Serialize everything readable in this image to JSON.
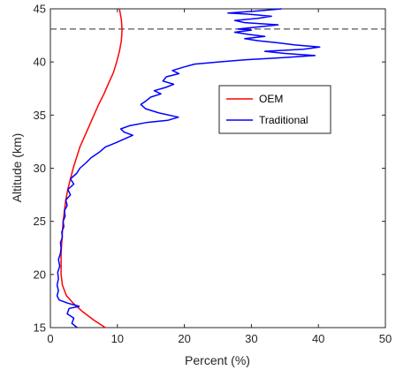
{
  "chart_data": {
    "type": "line",
    "xlabel": "Percent (%)",
    "ylabel": "Altitude (km)",
    "xlim": [
      0,
      50
    ],
    "ylim": [
      15,
      45
    ],
    "xticks": [
      0,
      10,
      20,
      30,
      40,
      50
    ],
    "yticks": [
      15,
      20,
      25,
      30,
      35,
      40,
      45
    ],
    "grid": false,
    "legend_position": "right-middle",
    "reference_line": {
      "y": 43.1,
      "style": "dashed",
      "color": "#555555"
    },
    "series": [
      {
        "name": "OEM",
        "color": "#ff0000",
        "points": [
          [
            8.2,
            15.0
          ],
          [
            6.5,
            15.7
          ],
          [
            4.8,
            16.5
          ],
          [
            3.4,
            17.3
          ],
          [
            2.4,
            18.0
          ],
          [
            1.8,
            19.0
          ],
          [
            1.6,
            20.0
          ],
          [
            1.6,
            21.0
          ],
          [
            1.6,
            22.0
          ],
          [
            1.7,
            23.0
          ],
          [
            1.8,
            24.0
          ],
          [
            1.9,
            25.0
          ],
          [
            2.1,
            26.0
          ],
          [
            2.3,
            27.0
          ],
          [
            2.6,
            28.0
          ],
          [
            3.0,
            29.0
          ],
          [
            3.4,
            30.0
          ],
          [
            3.9,
            31.0
          ],
          [
            4.4,
            32.0
          ],
          [
            5.1,
            33.0
          ],
          [
            5.8,
            34.0
          ],
          [
            6.5,
            35.0
          ],
          [
            7.2,
            36.0
          ],
          [
            8.0,
            37.0
          ],
          [
            8.7,
            38.0
          ],
          [
            9.4,
            39.0
          ],
          [
            9.9,
            40.0
          ],
          [
            10.3,
            41.0
          ],
          [
            10.6,
            42.0
          ],
          [
            10.7,
            43.0
          ],
          [
            10.6,
            44.0
          ],
          [
            10.3,
            45.0
          ]
        ]
      },
      {
        "name": "Traditional",
        "color": "#0000ff",
        "points": [
          [
            4.0,
            15.0
          ],
          [
            3.2,
            15.4
          ],
          [
            3.5,
            15.9
          ],
          [
            2.5,
            16.3
          ],
          [
            2.8,
            16.8
          ],
          [
            4.3,
            17.0
          ],
          [
            2.6,
            17.3
          ],
          [
            1.3,
            17.6
          ],
          [
            1.0,
            18.0
          ],
          [
            1.2,
            18.5
          ],
          [
            1.0,
            19.0
          ],
          [
            1.2,
            19.6
          ],
          [
            1.1,
            20.2
          ],
          [
            1.4,
            20.8
          ],
          [
            1.2,
            21.4
          ],
          [
            1.5,
            22.0
          ],
          [
            1.6,
            22.5
          ],
          [
            1.5,
            23.0
          ],
          [
            1.8,
            23.5
          ],
          [
            1.7,
            24.0
          ],
          [
            2.0,
            24.5
          ],
          [
            1.9,
            25.0
          ],
          [
            2.2,
            25.5
          ],
          [
            2.1,
            26.0
          ],
          [
            2.5,
            26.5
          ],
          [
            2.3,
            27.0
          ],
          [
            3.0,
            27.5
          ],
          [
            2.6,
            28.0
          ],
          [
            3.5,
            28.5
          ],
          [
            3.0,
            29.0
          ],
          [
            3.9,
            29.5
          ],
          [
            4.4,
            30.0
          ],
          [
            5.3,
            30.5
          ],
          [
            6.1,
            31.0
          ],
          [
            7.3,
            31.5
          ],
          [
            8.2,
            32.0
          ],
          [
            9.8,
            32.4
          ],
          [
            11.2,
            32.8
          ],
          [
            12.3,
            33.1
          ],
          [
            11.0,
            33.4
          ],
          [
            10.5,
            33.7
          ],
          [
            11.8,
            34.0
          ],
          [
            14.3,
            34.3
          ],
          [
            17.5,
            34.5
          ],
          [
            19.1,
            34.8
          ],
          [
            16.2,
            35.2
          ],
          [
            14.2,
            35.6
          ],
          [
            13.5,
            36.0
          ],
          [
            14.2,
            36.3
          ],
          [
            15.0,
            36.7
          ],
          [
            16.5,
            37.0
          ],
          [
            15.5,
            37.3
          ],
          [
            17.2,
            37.6
          ],
          [
            18.4,
            37.9
          ],
          [
            16.8,
            38.2
          ],
          [
            17.3,
            38.6
          ],
          [
            19.2,
            38.9
          ],
          [
            18.2,
            39.2
          ],
          [
            19.8,
            39.5
          ],
          [
            21.5,
            39.8
          ],
          [
            25.0,
            40.0
          ],
          [
            29.0,
            40.2
          ],
          [
            34.5,
            40.4
          ],
          [
            39.5,
            40.6
          ],
          [
            35.0,
            40.8
          ],
          [
            32.0,
            41.0
          ],
          [
            37.8,
            41.2
          ],
          [
            40.2,
            41.4
          ],
          [
            36.5,
            41.6
          ],
          [
            34.0,
            41.8
          ],
          [
            31.0,
            42.0
          ],
          [
            29.0,
            42.2
          ],
          [
            32.0,
            42.4
          ],
          [
            29.5,
            42.6
          ],
          [
            27.5,
            42.8
          ],
          [
            30.0,
            43.0
          ],
          [
            28.0,
            43.1
          ],
          [
            31.0,
            43.3
          ],
          [
            34.0,
            43.5
          ],
          [
            29.0,
            43.7
          ],
          [
            27.5,
            43.9
          ],
          [
            31.0,
            44.1
          ],
          [
            33.0,
            44.3
          ],
          [
            29.5,
            44.5
          ],
          [
            26.5,
            44.6
          ],
          [
            31.0,
            44.8
          ],
          [
            34.5,
            45.0
          ]
        ]
      }
    ]
  }
}
